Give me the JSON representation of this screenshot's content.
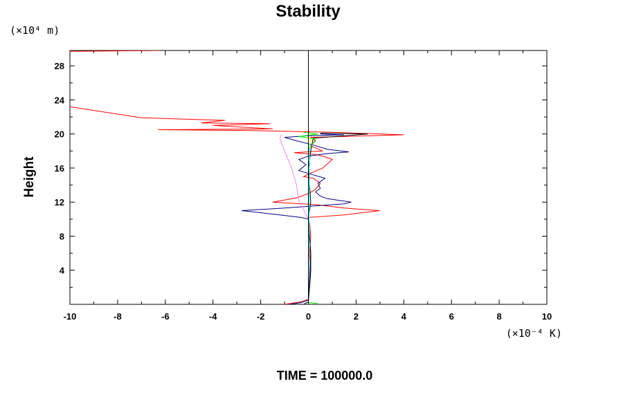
{
  "chart_data": {
    "type": "line",
    "title": "Stability",
    "ylabel": "Height",
    "xlabel": "",
    "y_unit": "(×10⁴ m)",
    "x_unit": "(×10⁻⁴ K)",
    "footer": "TIME = 100000.0",
    "xlim": [
      -10,
      10
    ],
    "ylim": [
      0,
      29.8
    ],
    "x_ticks": [
      -10,
      -8,
      -6,
      -4,
      -2,
      0,
      2,
      4,
      6,
      8,
      10
    ],
    "y_ticks": [
      4,
      8,
      12,
      16,
      20,
      24,
      28
    ],
    "grid": false,
    "legend": "none",
    "series": [
      {
        "color": "#ff0000",
        "points": [
          [
            -1.0,
            0
          ],
          [
            -0.3,
            0.3
          ],
          [
            0,
            0.6
          ],
          [
            0.05,
            2
          ],
          [
            0.1,
            4
          ],
          [
            0.05,
            6
          ],
          [
            0.1,
            8
          ],
          [
            0.05,
            9.5
          ],
          [
            0,
            10.2
          ],
          [
            1.5,
            10.5
          ],
          [
            3.0,
            11.0
          ],
          [
            1.5,
            11.3
          ],
          [
            0.3,
            11.7
          ],
          [
            -1.5,
            12.0
          ],
          [
            -0.5,
            12.5
          ],
          [
            0,
            13
          ],
          [
            0.3,
            13.5
          ],
          [
            0.5,
            14.2
          ],
          [
            0.2,
            14.8
          ],
          [
            -0.2,
            15.0
          ],
          [
            0.1,
            15.4
          ],
          [
            0.6,
            16.0
          ],
          [
            1.0,
            17.0
          ],
          [
            0.7,
            17.3
          ],
          [
            0.3,
            17.6
          ],
          [
            -0.6,
            17.8
          ],
          [
            0.6,
            18.0
          ],
          [
            0.1,
            18.6
          ],
          [
            0.3,
            19.2
          ],
          [
            0.1,
            19.6
          ],
          [
            4.0,
            19.9
          ],
          [
            2.0,
            20.1
          ],
          [
            1.0,
            20.2
          ],
          [
            -2.3,
            20.4
          ],
          [
            -6.3,
            20.5
          ],
          [
            -1.5,
            20.6
          ],
          [
            -2.8,
            20.8
          ],
          [
            -4.0,
            21.0
          ],
          [
            -1.6,
            21.2
          ],
          [
            -4.5,
            21.3
          ],
          [
            -3.5,
            21.6
          ],
          [
            -7.0,
            21.9
          ],
          [
            -10.0,
            23.2
          ]
        ]
      },
      {
        "color": "#ff0000",
        "points": [
          [
            -10.0,
            29.7
          ],
          [
            -6.2,
            29.8
          ]
        ]
      },
      {
        "color": "#000080",
        "points": [
          [
            -0.8,
            0
          ],
          [
            -0.3,
            0.2
          ],
          [
            0,
            0.5
          ],
          [
            0.05,
            3
          ],
          [
            0.1,
            6
          ],
          [
            0.05,
            8
          ],
          [
            0,
            10
          ],
          [
            -0.3,
            10.2
          ],
          [
            -1.5,
            10.6
          ],
          [
            -2.8,
            11.0
          ],
          [
            -1.0,
            11.3
          ],
          [
            0.5,
            11.6
          ],
          [
            1.5,
            11.8
          ],
          [
            1.8,
            12.0
          ],
          [
            0.8,
            12.4
          ],
          [
            0.5,
            12.7
          ],
          [
            0.3,
            13.2
          ],
          [
            0.5,
            13.6
          ],
          [
            0.4,
            14.2
          ],
          [
            0.7,
            14.8
          ],
          [
            0.2,
            15.2
          ],
          [
            -0.4,
            15.7
          ],
          [
            -0.1,
            16.4
          ],
          [
            -0.4,
            17.0
          ],
          [
            0.0,
            17.4
          ],
          [
            0.8,
            17.7
          ],
          [
            1.7,
            17.9
          ],
          [
            0.8,
            18.2
          ],
          [
            0.2,
            18.7
          ],
          [
            -0.5,
            19.2
          ],
          [
            -1.0,
            19.6
          ],
          [
            0.0,
            19.8
          ],
          [
            1.5,
            19.9
          ],
          [
            0.5,
            20.0
          ]
        ]
      },
      {
        "color": "#000000",
        "points": [
          [
            -0.2,
            0
          ],
          [
            0,
            0.3
          ],
          [
            0.05,
            2
          ],
          [
            0.1,
            4
          ],
          [
            0.1,
            6
          ],
          [
            0.05,
            8
          ],
          [
            0.0,
            10
          ],
          [
            0.1,
            12
          ],
          [
            0.05,
            14
          ],
          [
            0,
            16
          ],
          [
            0.1,
            18
          ],
          [
            0.2,
            19.5
          ],
          [
            2.5,
            20.0
          ],
          [
            0.5,
            20.1
          ]
        ]
      },
      {
        "color": "#ff80ff",
        "points": [
          [
            0,
            0
          ],
          [
            0,
            10
          ],
          [
            -0.4,
            12.2
          ],
          [
            -0.5,
            14
          ],
          [
            -0.7,
            16
          ],
          [
            -1.0,
            18
          ],
          [
            -1.2,
            19.5
          ],
          [
            -1.1,
            20.0
          ]
        ]
      },
      {
        "color": "#00ff00",
        "points": [
          [
            0.4,
            0.1
          ],
          [
            0,
            0.2
          ],
          [
            0,
            18
          ],
          [
            0.3,
            19.4
          ],
          [
            -0.4,
            19.7
          ],
          [
            0.4,
            20.0
          ],
          [
            -0.2,
            20.2
          ]
        ]
      },
      {
        "color": "#ffff00",
        "points": [
          [
            0,
            0
          ],
          [
            0,
            18.5
          ],
          [
            0.1,
            19.3
          ],
          [
            0,
            19.6
          ]
        ]
      },
      {
        "color": "#00ffff",
        "points": [
          [
            0,
            0
          ],
          [
            0.05,
            18.0
          ],
          [
            0,
            19.0
          ]
        ]
      }
    ]
  }
}
